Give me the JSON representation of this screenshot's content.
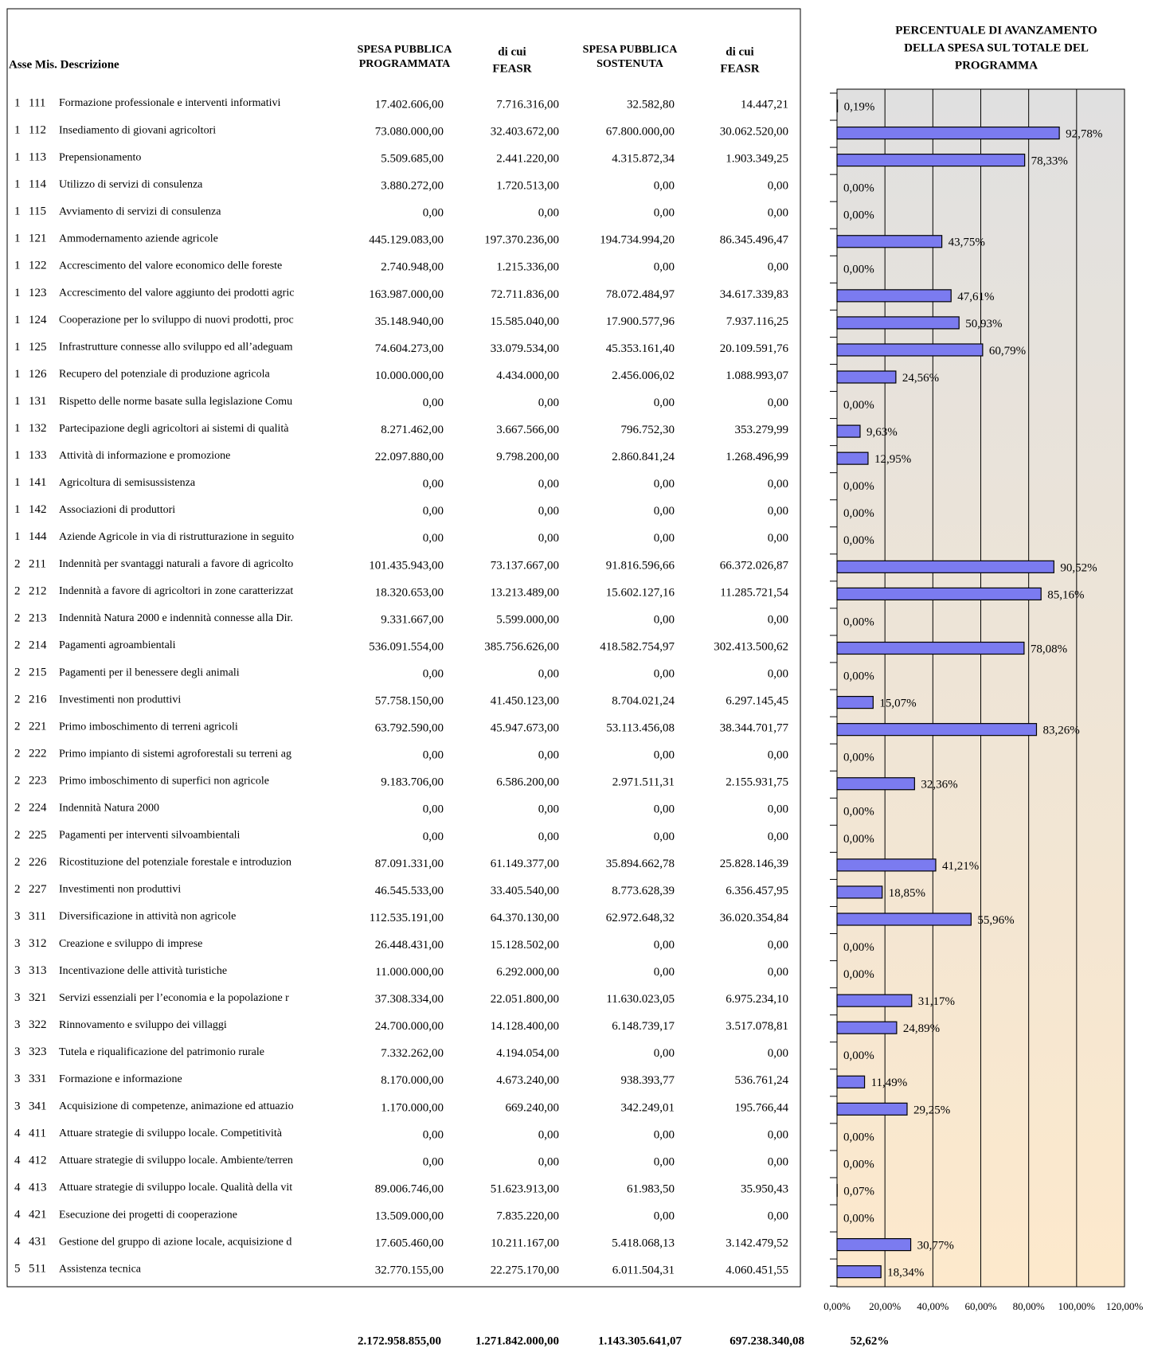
{
  "table": {
    "headers": [
      [
        "Asse  Mis. Descrizione"
      ],
      [
        "SPESA PUBBLICA",
        "PROGRAMMATA"
      ],
      [
        "di cui",
        "FEASR"
      ],
      [
        "SPESA PUBBLICA",
        "SOSTENUTA"
      ],
      [
        "di cui",
        "FEASR"
      ]
    ],
    "rows": [
      [
        "1",
        "111",
        "Formazione professionale e interventi informativi",
        "17.402.606,00",
        "7.716.316,00",
        "32.582,80",
        "14.447,21"
      ],
      [
        "1",
        "112",
        "Insediamento di giovani agricoltori",
        "73.080.000,00",
        "32.403.672,00",
        "67.800.000,00",
        "30.062.520,00"
      ],
      [
        "1",
        "113",
        "Prepensionamento",
        "5.509.685,00",
        "2.441.220,00",
        "4.315.872,34",
        "1.903.349,25"
      ],
      [
        "1",
        "114",
        "Utilizzo di servizi di consulenza",
        "3.880.272,00",
        "1.720.513,00",
        "0,00",
        "0,00"
      ],
      [
        "1",
        "115",
        "Avviamento di servizi di consulenza",
        "0,00",
        "0,00",
        "0,00",
        "0,00"
      ],
      [
        "1",
        "121",
        "Ammodernamento aziende agricole",
        "445.129.083,00",
        "197.370.236,00",
        "194.734.994,20",
        "86.345.496,47"
      ],
      [
        "1",
        "122",
        "Accrescimento del valore economico delle foreste",
        "2.740.948,00",
        "1.215.336,00",
        "0,00",
        "0,00"
      ],
      [
        "1",
        "123",
        "Accrescimento del valore aggiunto dei prodotti agric",
        "163.987.000,00",
        "72.711.836,00",
        "78.072.484,97",
        "34.617.339,83"
      ],
      [
        "1",
        "124",
        "Cooperazione per lo sviluppo di nuovi prodotti, proc",
        "35.148.940,00",
        "15.585.040,00",
        "17.900.577,96",
        "7.937.116,25"
      ],
      [
        "1",
        "125",
        "Infrastrutture connesse allo sviluppo ed all’adeguam",
        "74.604.273,00",
        "33.079.534,00",
        "45.353.161,40",
        "20.109.591,76"
      ],
      [
        "1",
        "126",
        "Recupero del potenziale di produzione agricola",
        "10.000.000,00",
        "4.434.000,00",
        "2.456.006,02",
        "1.088.993,07"
      ],
      [
        "1",
        "131",
        "Rispetto delle norme basate sulla legislazione Comu",
        "0,00",
        "0,00",
        "0,00",
        "0,00"
      ],
      [
        "1",
        "132",
        "Partecipazione degli agricoltori ai sistemi di qualità",
        "8.271.462,00",
        "3.667.566,00",
        "796.752,30",
        "353.279,99"
      ],
      [
        "1",
        "133",
        "Attività di informazione e promozione",
        "22.097.880,00",
        "9.798.200,00",
        "2.860.841,24",
        "1.268.496,99"
      ],
      [
        "1",
        "141",
        "Agricoltura di semisussistenza",
        "0,00",
        "0,00",
        "0,00",
        "0,00"
      ],
      [
        "1",
        "142",
        "Associazioni di produttori",
        "0,00",
        "0,00",
        "0,00",
        "0,00"
      ],
      [
        "1",
        "144",
        "Aziende Agricole in via di ristrutturazione in seguito",
        "0,00",
        "0,00",
        "0,00",
        "0,00"
      ],
      [
        "2",
        "211",
        "Indennità per svantaggi naturali a favore di agricolto",
        "101.435.943,00",
        "73.137.667,00",
        "91.816.596,66",
        "66.372.026,87"
      ],
      [
        "2",
        "212",
        "Indennità a favore di agricoltori in zone caratterizzat",
        "18.320.653,00",
        "13.213.489,00",
        "15.602.127,16",
        "11.285.721,54"
      ],
      [
        "2",
        "213",
        "Indennità Natura 2000 e indennità connesse alla Dir.",
        "9.331.667,00",
        "5.599.000,00",
        "0,00",
        "0,00"
      ],
      [
        "2",
        "214",
        "Pagamenti agroambientali",
        "536.091.554,00",
        "385.756.626,00",
        "418.582.754,97",
        "302.413.500,62"
      ],
      [
        "2",
        "215",
        "Pagamenti per il benessere degli animali",
        "0,00",
        "0,00",
        "0,00",
        "0,00"
      ],
      [
        "2",
        "216",
        "Investimenti non produttivi",
        "57.758.150,00",
        "41.450.123,00",
        "8.704.021,24",
        "6.297.145,45"
      ],
      [
        "2",
        "221",
        "Primo imboschimento di terreni agricoli",
        "63.792.590,00",
        "45.947.673,00",
        "53.113.456,08",
        "38.344.701,77"
      ],
      [
        "2",
        "222",
        "Primo impianto di sistemi agroforestali su terreni ag",
        "0,00",
        "0,00",
        "0,00",
        "0,00"
      ],
      [
        "2",
        "223",
        "Primo imboschimento di superfici non agricole",
        "9.183.706,00",
        "6.586.200,00",
        "2.971.511,31",
        "2.155.931,75"
      ],
      [
        "2",
        "224",
        "Indennità Natura 2000",
        "0,00",
        "0,00",
        "0,00",
        "0,00"
      ],
      [
        "2",
        "225",
        "Pagamenti per interventi silvoambientali",
        "0,00",
        "0,00",
        "0,00",
        "0,00"
      ],
      [
        "2",
        "226",
        "Ricostituzione del potenziale forestale e introduzion",
        "87.091.331,00",
        "61.149.377,00",
        "35.894.662,78",
        "25.828.146,39"
      ],
      [
        "2",
        "227",
        "Investimenti non produttivi",
        "46.545.533,00",
        "33.405.540,00",
        "8.773.628,39",
        "6.356.457,95"
      ],
      [
        "3",
        "311",
        "Diversificazione in attività non agricole",
        "112.535.191,00",
        "64.370.130,00",
        "62.972.648,32",
        "36.020.354,84"
      ],
      [
        "3",
        "312",
        "Creazione e sviluppo di imprese",
        "26.448.431,00",
        "15.128.502,00",
        "0,00",
        "0,00"
      ],
      [
        "3",
        "313",
        "Incentivazione delle attività turistiche",
        "11.000.000,00",
        "6.292.000,00",
        "0,00",
        "0,00"
      ],
      [
        "3",
        "321",
        "Servizi essenziali per l’economia e la popolazione r",
        "37.308.334,00",
        "22.051.800,00",
        "11.630.023,05",
        "6.975.234,10"
      ],
      [
        "3",
        "322",
        "Rinnovamento e sviluppo dei villaggi",
        "24.700.000,00",
        "14.128.400,00",
        "6.148.739,17",
        "3.517.078,81"
      ],
      [
        "3",
        "323",
        "Tutela e riqualificazione del patrimonio rurale",
        "7.332.262,00",
        "4.194.054,00",
        "0,00",
        "0,00"
      ],
      [
        "3",
        "331",
        "Formazione e informazione",
        "8.170.000,00",
        "4.673.240,00",
        "938.393,77",
        "536.761,24"
      ],
      [
        "3",
        "341",
        "Acquisizione di competenze, animazione ed attuazio",
        "1.170.000,00",
        "669.240,00",
        "342.249,01",
        "195.766,44"
      ],
      [
        "4",
        "411",
        "Attuare strategie di sviluppo locale. Competitività",
        "0,00",
        "0,00",
        "0,00",
        "0,00"
      ],
      [
        "4",
        "412",
        "Attuare strategie di sviluppo locale. Ambiente/terren",
        "0,00",
        "0,00",
        "0,00",
        "0,00"
      ],
      [
        "4",
        "413",
        "Attuare strategie di sviluppo locale. Qualità della vit",
        "89.006.746,00",
        "51.623.913,00",
        "61.983,50",
        "35.950,43"
      ],
      [
        "4",
        "421",
        "Esecuzione dei progetti di cooperazione",
        "13.509.000,00",
        "7.835.220,00",
        "0,00",
        "0,00"
      ],
      [
        "4",
        "431",
        "Gestione del gruppo di azione locale, acquisizione d",
        "17.605.460,00",
        "10.211.167,00",
        "5.418.068,13",
        "3.142.479,52"
      ],
      [
        "5",
        "511",
        "Assistenza tecnica",
        "32.770.155,00",
        "22.275.170,00",
        "6.011.504,31",
        "4.060.451,55"
      ]
    ],
    "totals": [
      "2.172.958.855,00",
      "1.271.842.000,00",
      "1.143.305.641,07",
      "697.238.340,08",
      "52,62%"
    ]
  },
  "chart_data": {
    "type": "bar",
    "orientation": "horizontal",
    "title": [
      "PERCENTUALE DI AVANZAMENTO",
      "DELLA SPESA SUL TOTALE DEL",
      "PROGRAMMA"
    ],
    "values": [
      0.19,
      92.78,
      78.33,
      0,
      0,
      43.75,
      0,
      47.61,
      50.93,
      60.79,
      24.56,
      0,
      9.63,
      12.95,
      0,
      0,
      0,
      90.52,
      85.16,
      0,
      78.08,
      0,
      15.07,
      83.26,
      0,
      32.36,
      0,
      0,
      41.21,
      18.85,
      55.96,
      0,
      0,
      31.17,
      24.89,
      0,
      11.49,
      29.25,
      0,
      0,
      0.07,
      0,
      30.77,
      18.34
    ],
    "value_labels": [
      "0,19%",
      "92,78%",
      "78,33%",
      "0,00%",
      "0,00%",
      "43,75%",
      "0,00%",
      "47,61%",
      "50,93%",
      "60,79%",
      "24,56%",
      "0,00%",
      "9,63%",
      "12,95%",
      "0,00%",
      "0,00%",
      "0,00%",
      "90,52%",
      "85,16%",
      "0,00%",
      "78,08%",
      "0,00%",
      "15,07%",
      "83,26%",
      "0,00%",
      "32,36%",
      "0,00%",
      "0,00%",
      "41,21%",
      "18,85%",
      "55,96%",
      "0,00%",
      "0,00%",
      "31,17%",
      "24,89%",
      "0,00%",
      "11,49%",
      "29,25%",
      "0,00%",
      "0,00%",
      "0,07%",
      "0,00%",
      "30,77%",
      "18,34%"
    ],
    "color": "#7b7bf0",
    "xlim": [
      0,
      120
    ],
    "xticks": [
      {
        "value": 0,
        "label": "0,00%"
      },
      {
        "value": 20,
        "label": "20,00%"
      },
      {
        "value": 40,
        "label": "40,00%"
      },
      {
        "value": 60,
        "label": "60,00%"
      },
      {
        "value": 80,
        "label": "80,00%"
      },
      {
        "value": 100,
        "label": "100,00%"
      },
      {
        "value": 120,
        "label": "120,00%"
      }
    ],
    "grid": true
  }
}
